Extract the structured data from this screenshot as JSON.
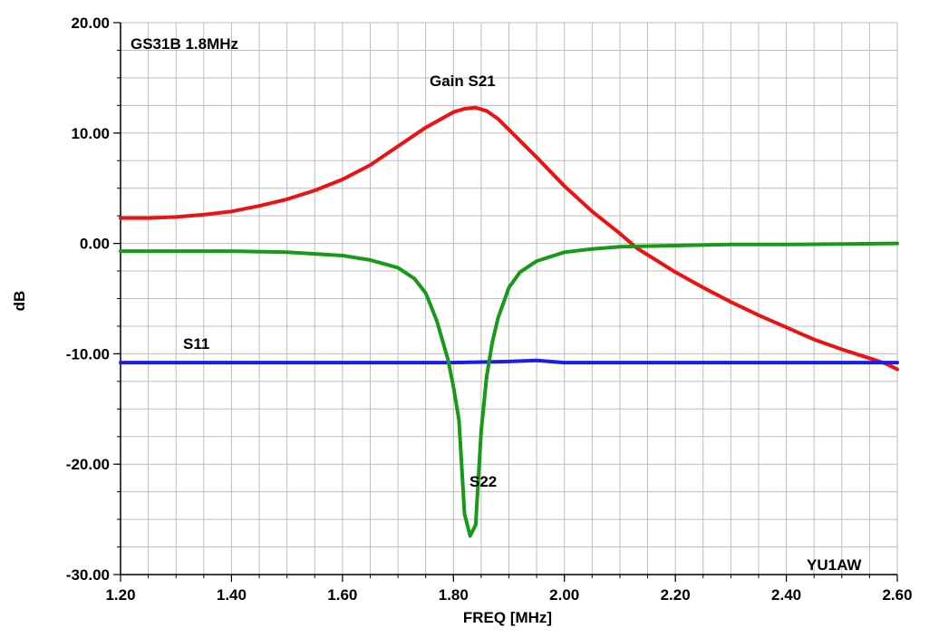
{
  "chart_data": {
    "type": "line",
    "title": "GS31B 1.8MHz",
    "xlabel": "FREQ [MHz]",
    "ylabel": "dB",
    "xlim": [
      1.2,
      2.6
    ],
    "ylim": [
      -30,
      20
    ],
    "x_ticks": [
      "1.20",
      "1.40",
      "1.60",
      "1.80",
      "2.00",
      "2.20",
      "2.40",
      "2.60"
    ],
    "y_ticks": [
      "20.00",
      "10.00",
      "0.00",
      "-10.00",
      "-20.00",
      "-30.00"
    ],
    "grid": true,
    "legend": "none",
    "annotations": {
      "gain": "Gain S21",
      "s11": "S11",
      "s22": "S22",
      "author": "YU1AW"
    },
    "series": [
      {
        "name": "Gain S21",
        "color": "#ee1111",
        "x": [
          1.2,
          1.25,
          1.3,
          1.35,
          1.4,
          1.45,
          1.5,
          1.55,
          1.6,
          1.65,
          1.7,
          1.75,
          1.8,
          1.82,
          1.84,
          1.86,
          1.88,
          1.9,
          1.95,
          2.0,
          2.05,
          2.1,
          2.13,
          2.2,
          2.25,
          2.3,
          2.35,
          2.4,
          2.45,
          2.5,
          2.55,
          2.58,
          2.6
        ],
        "y": [
          2.3,
          2.3,
          2.4,
          2.6,
          2.9,
          3.4,
          4.0,
          4.8,
          5.8,
          7.1,
          8.8,
          10.5,
          11.9,
          12.2,
          12.3,
          12.0,
          11.3,
          10.3,
          7.8,
          5.2,
          2.9,
          0.9,
          -0.4,
          -2.6,
          -4.0,
          -5.3,
          -6.5,
          -7.6,
          -8.7,
          -9.6,
          -10.4,
          -10.9,
          -11.4
        ]
      },
      {
        "name": "S11",
        "color": "#1b1bee",
        "x": [
          1.2,
          1.4,
          1.6,
          1.8,
          1.9,
          1.95,
          2.0,
          2.2,
          2.4,
          2.6
        ],
        "y": [
          -10.8,
          -10.8,
          -10.8,
          -10.8,
          -10.7,
          -10.6,
          -10.8,
          -10.8,
          -10.8,
          -10.8
        ]
      },
      {
        "name": "S22",
        "color": "#179a17",
        "x": [
          1.2,
          1.3,
          1.4,
          1.5,
          1.6,
          1.65,
          1.7,
          1.73,
          1.75,
          1.77,
          1.79,
          1.8,
          1.81,
          1.82,
          1.83,
          1.84,
          1.85,
          1.86,
          1.87,
          1.88,
          1.9,
          1.92,
          1.95,
          2.0,
          2.05,
          2.1,
          2.2,
          2.3,
          2.4,
          2.5,
          2.6
        ],
        "y": [
          -0.7,
          -0.7,
          -0.7,
          -0.8,
          -1.1,
          -1.5,
          -2.2,
          -3.2,
          -4.5,
          -7.0,
          -10.5,
          -13.0,
          -16.0,
          -24.5,
          -26.5,
          -25.5,
          -17.0,
          -12.0,
          -9.0,
          -6.8,
          -4.0,
          -2.6,
          -1.6,
          -0.8,
          -0.5,
          -0.3,
          -0.2,
          -0.1,
          -0.1,
          -0.05,
          0.0
        ]
      }
    ]
  }
}
